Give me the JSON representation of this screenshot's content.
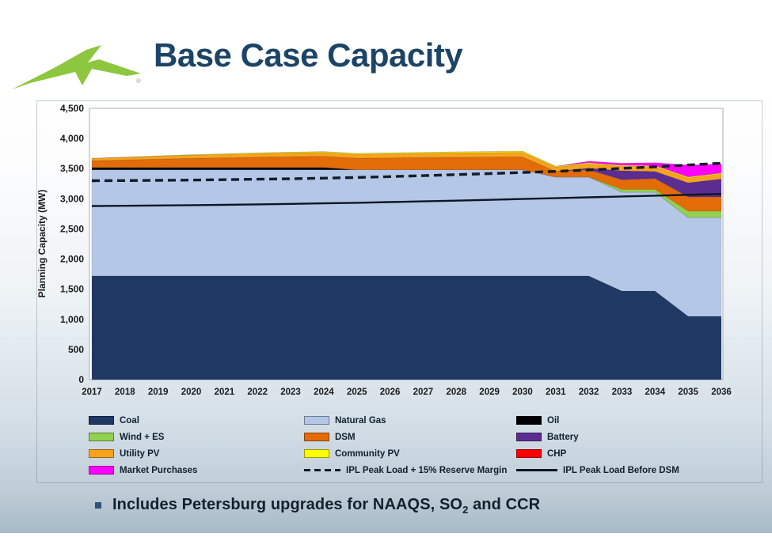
{
  "header": {
    "title": "Base Case Capacity",
    "logo_name": "lightning-bolt-logo",
    "registered_mark": "®",
    "logo_color": "#8dc63f"
  },
  "chart_data": {
    "type": "area",
    "stacked": true,
    "title": "",
    "xlabel": "",
    "ylabel": "Planning Capacity (MW)",
    "ylim": [
      0,
      4500
    ],
    "y_ticks": [
      "0",
      "500",
      "1,000",
      "1,500",
      "2,000",
      "2,500",
      "3,000",
      "3,500",
      "4,000",
      "4,500"
    ],
    "grid": false,
    "legend_position": "bottom",
    "years": [
      2017,
      2018,
      2019,
      2020,
      2021,
      2022,
      2023,
      2024,
      2025,
      2026,
      2027,
      2028,
      2029,
      2030,
      2031,
      2032,
      2033,
      2034,
      2035,
      2036
    ],
    "series": [
      {
        "name": "Coal",
        "color": "#1f3864",
        "values": [
          1720,
          1720,
          1720,
          1720,
          1720,
          1720,
          1720,
          1720,
          1720,
          1720,
          1720,
          1720,
          1720,
          1720,
          1720,
          1720,
          1470,
          1470,
          1050,
          1050
        ]
      },
      {
        "name": "Natural Gas",
        "color": "#b4c7e7",
        "values": [
          1760,
          1760,
          1760,
          1760,
          1760,
          1760,
          1760,
          1760,
          1760,
          1760,
          1760,
          1760,
          1760,
          1760,
          1640,
          1640,
          1640,
          1640,
          1640,
          1640
        ]
      },
      {
        "name": "Oil",
        "color": "#000000",
        "values": [
          40,
          40,
          40,
          40,
          40,
          40,
          40,
          40,
          0,
          0,
          0,
          0,
          0,
          0,
          0,
          0,
          0,
          0,
          0,
          0
        ]
      },
      {
        "name": "Wind + ES",
        "color": "#92d050",
        "values": [
          0,
          0,
          0,
          0,
          0,
          0,
          0,
          0,
          0,
          0,
          0,
          0,
          0,
          0,
          0,
          0,
          45,
          45,
          105,
          105
        ]
      },
      {
        "name": "DSM",
        "color": "#e36c09",
        "values": [
          110,
          125,
          138,
          150,
          160,
          170,
          178,
          185,
          192,
          198,
          203,
          208,
          212,
          215,
          95,
          120,
          160,
          180,
          235,
          235
        ]
      },
      {
        "name": "Battery",
        "color": "#5c2d91",
        "values": [
          0,
          0,
          0,
          0,
          0,
          0,
          0,
          0,
          0,
          0,
          0,
          0,
          0,
          0,
          0,
          30,
          150,
          120,
          235,
          300
        ]
      },
      {
        "name": "Utility PV",
        "color": "#faa21b",
        "values": [
          40,
          44,
          48,
          52,
          56,
          60,
          62,
          64,
          66,
          68,
          70,
          72,
          74,
          76,
          70,
          72,
          75,
          78,
          80,
          80
        ]
      },
      {
        "name": "Community PV",
        "color": "#ffff00",
        "values": [
          0,
          0,
          6,
          8,
          10,
          12,
          13,
          14,
          15,
          16,
          16,
          17,
          17,
          18,
          14,
          15,
          15,
          16,
          16,
          16
        ]
      },
      {
        "name": "CHP",
        "color": "#ff0000",
        "values": [
          0,
          0,
          0,
          0,
          0,
          0,
          0,
          0,
          0,
          0,
          0,
          0,
          0,
          0,
          0,
          0,
          0,
          0,
          0,
          0
        ]
      },
      {
        "name": "Market Purchases",
        "color": "#ff00ff",
        "values": [
          0,
          0,
          0,
          0,
          0,
          0,
          0,
          0,
          0,
          0,
          0,
          0,
          0,
          0,
          0,
          25,
          35,
          50,
          200,
          150
        ]
      }
    ],
    "lines": [
      {
        "name": "IPL Peak Load + 15% Reserve Margin",
        "style": "dashed",
        "color": "#131c29",
        "values": [
          3300,
          3302,
          3306,
          3310,
          3316,
          3324,
          3332,
          3342,
          3354,
          3368,
          3384,
          3400,
          3418,
          3436,
          3455,
          3478,
          3504,
          3530,
          3560,
          3590
        ]
      },
      {
        "name": "IPL Peak Load Before DSM",
        "style": "solid",
        "color": "#0e1621",
        "values": [
          2880,
          2884,
          2889,
          2894,
          2900,
          2907,
          2915,
          2924,
          2934,
          2945,
          2957,
          2969,
          2982,
          2996,
          3010,
          3024,
          3038,
          3052,
          3066,
          3080
        ]
      }
    ]
  },
  "legend": {
    "items": [
      {
        "label": "Coal",
        "swatch": "box",
        "color": "#1f3864"
      },
      {
        "label": "Natural Gas",
        "swatch": "box",
        "color": "#b4c7e7"
      },
      {
        "label": "Oil",
        "swatch": "box",
        "color": "#000000"
      },
      {
        "label": "Wind + ES",
        "swatch": "box",
        "color": "#92d050"
      },
      {
        "label": "DSM",
        "swatch": "box",
        "color": "#e36c09"
      },
      {
        "label": "Battery",
        "swatch": "box",
        "color": "#5c2d91"
      },
      {
        "label": "Utility PV",
        "swatch": "box",
        "color": "#faa21b"
      },
      {
        "label": "Community PV",
        "swatch": "box",
        "color": "#ffff00"
      },
      {
        "label": "CHP",
        "swatch": "box",
        "color": "#ff0000"
      },
      {
        "label": "Market Purchases",
        "swatch": "box",
        "color": "#ff00ff"
      },
      {
        "label": "IPL Peak Load + 15% Reserve Margin",
        "swatch": "dashed",
        "color": "#131c29"
      },
      {
        "label": "IPL Peak Load Before DSM",
        "swatch": "solid",
        "color": "#0e1621"
      }
    ]
  },
  "footer": {
    "bullet_text_pre": "Includes Petersburg upgrades for NAAQS, SO",
    "bullet_sub": "2",
    "bullet_text_post": " and CCR"
  }
}
